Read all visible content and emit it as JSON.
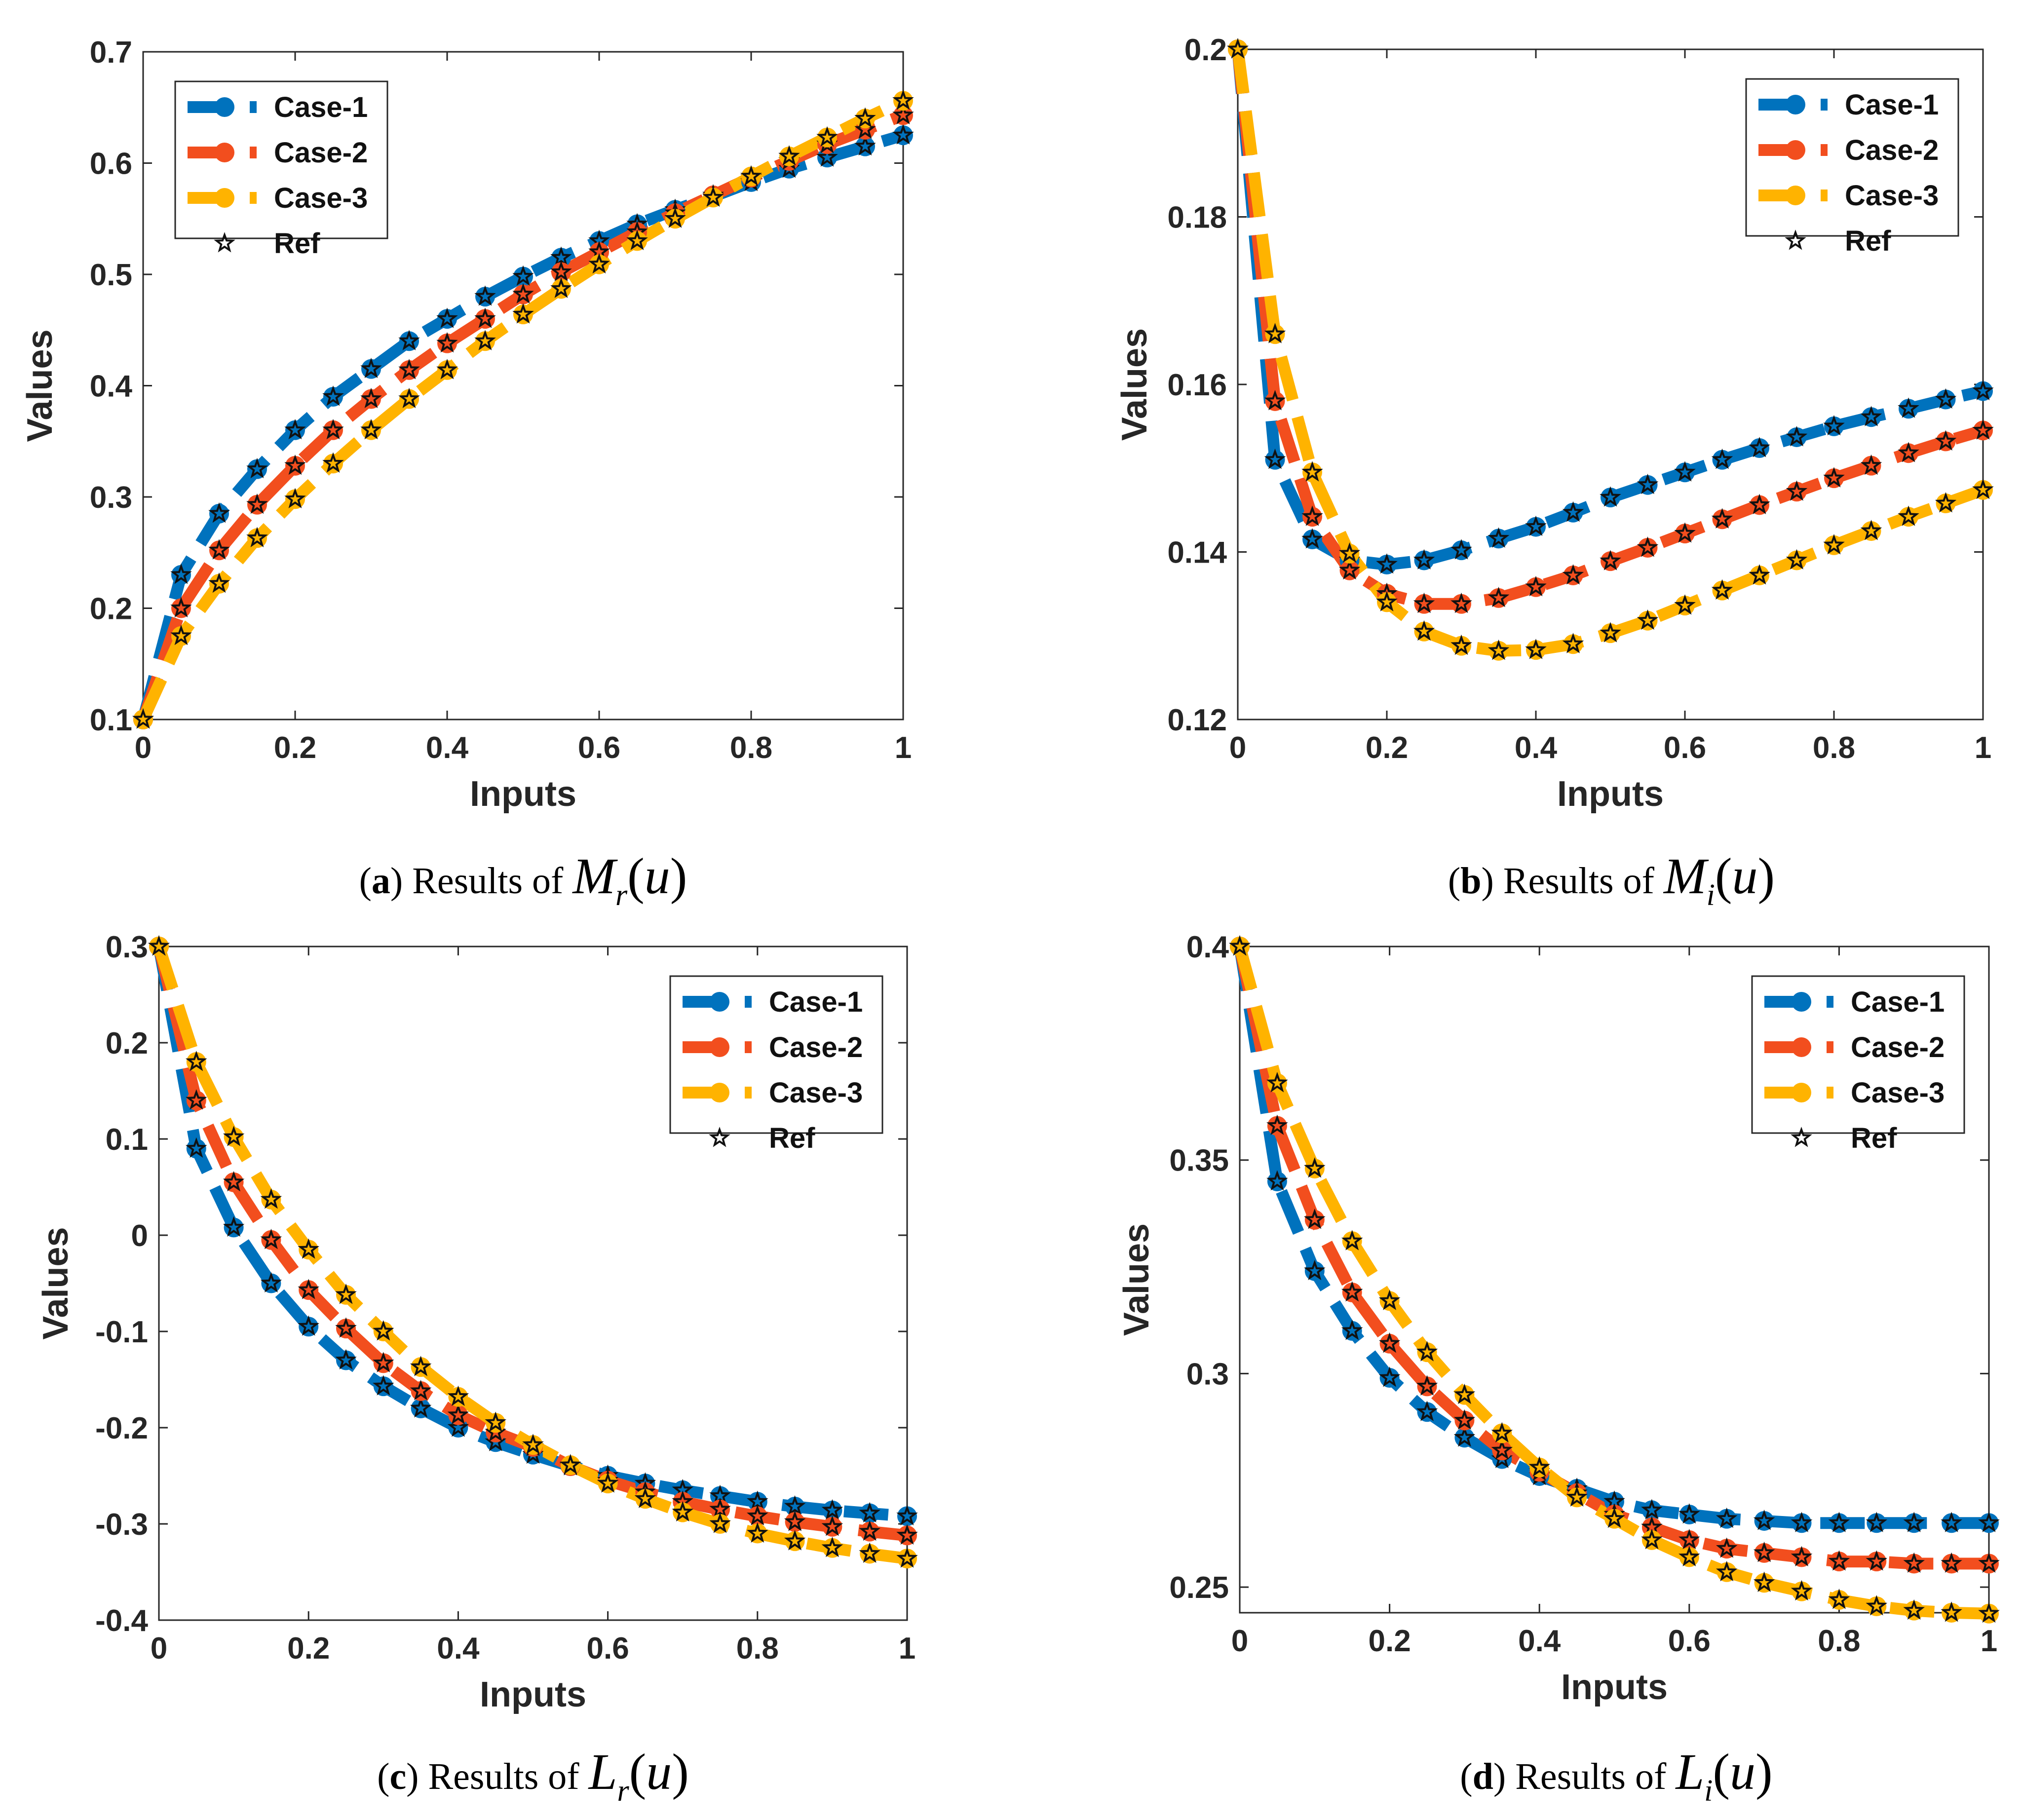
{
  "colors": {
    "case1": "#0072BD",
    "case2": "#F24E1E",
    "case3": "#FFB300",
    "ref": "#111111"
  },
  "chart_data": [
    {
      "id": "a",
      "type": "line",
      "title": "",
      "xlabel": "Inputs",
      "ylabel": "Values",
      "xlim": [
        0,
        1
      ],
      "ylim": [
        0.1,
        0.7
      ],
      "xticks": [
        0,
        0.2,
        0.4,
        0.6,
        0.8,
        1
      ],
      "xtick_labels": [
        "0",
        "0.2",
        "0.4",
        "0.6",
        "0.8",
        "1"
      ],
      "yticks": [
        0.1,
        0.2,
        0.3,
        0.4,
        0.5,
        0.6,
        0.7
      ],
      "ytick_labels": [
        "0.1",
        "0.2",
        "0.3",
        "0.4",
        "0.5",
        "0.6",
        "0.7"
      ],
      "legend": {
        "position": "top-left",
        "entries": [
          "Case-1",
          "Case-2",
          "Case-3",
          "Ref"
        ]
      },
      "caption": {
        "letter": "a",
        "text": "Results of",
        "symbol": "M",
        "sub": "r",
        "arg": "u"
      },
      "x": [
        0,
        0.05,
        0.1,
        0.15,
        0.2,
        0.25,
        0.3,
        0.35,
        0.4,
        0.45,
        0.5,
        0.55,
        0.6,
        0.65,
        0.7,
        0.75,
        0.8,
        0.85,
        0.9,
        0.95,
        1
      ],
      "series": [
        {
          "name": "Case-1",
          "values": [
            0.1,
            0.23,
            0.285,
            0.325,
            0.36,
            0.39,
            0.415,
            0.44,
            0.46,
            0.48,
            0.498,
            0.515,
            0.53,
            0.545,
            0.558,
            0.57,
            0.583,
            0.595,
            0.605,
            0.615,
            0.625
          ]
        },
        {
          "name": "Case-2",
          "values": [
            0.1,
            0.2,
            0.252,
            0.293,
            0.328,
            0.36,
            0.388,
            0.414,
            0.438,
            0.46,
            0.482,
            0.502,
            0.52,
            0.538,
            0.555,
            0.571,
            0.587,
            0.602,
            0.617,
            0.63,
            0.643
          ]
        },
        {
          "name": "Case-3",
          "values": [
            0.1,
            0.175,
            0.222,
            0.263,
            0.298,
            0.33,
            0.36,
            0.388,
            0.414,
            0.44,
            0.464,
            0.487,
            0.509,
            0.53,
            0.55,
            0.569,
            0.588,
            0.606,
            0.623,
            0.64,
            0.656
          ]
        }
      ]
    },
    {
      "id": "b",
      "type": "line",
      "title": "",
      "xlabel": "Inputs",
      "ylabel": "Values",
      "xlim": [
        0,
        1
      ],
      "ylim": [
        0.12,
        0.2
      ],
      "xticks": [
        0,
        0.2,
        0.4,
        0.6,
        0.8,
        1
      ],
      "xtick_labels": [
        "0",
        "0.2",
        "0.4",
        "0.6",
        "0.8",
        "1"
      ],
      "yticks": [
        0.12,
        0.14,
        0.16,
        0.18,
        0.2
      ],
      "ytick_labels": [
        "0.12",
        "0.14",
        "0.16",
        "0.18",
        "0.2"
      ],
      "legend": {
        "position": "top-right",
        "entries": [
          "Case-1",
          "Case-2",
          "Case-3",
          "Ref"
        ]
      },
      "caption": {
        "letter": "b",
        "text": "Results of",
        "symbol": "M",
        "sub": "i",
        "arg": "u"
      },
      "x": [
        0,
        0.05,
        0.1,
        0.15,
        0.2,
        0.25,
        0.3,
        0.35,
        0.4,
        0.45,
        0.5,
        0.55,
        0.6,
        0.65,
        0.7,
        0.75,
        0.8,
        0.85,
        0.9,
        0.95,
        1
      ],
      "series": [
        {
          "name": "Case-1",
          "values": [
            0.2,
            0.151,
            0.1415,
            0.139,
            0.1385,
            0.139,
            0.1402,
            0.1416,
            0.143,
            0.1447,
            0.1465,
            0.148,
            0.1495,
            0.151,
            0.1524,
            0.1537,
            0.155,
            0.1561,
            0.1571,
            0.1582,
            0.1592
          ]
        },
        {
          "name": "Case-2",
          "values": [
            0.2,
            0.158,
            0.1442,
            0.1378,
            0.135,
            0.1338,
            0.1338,
            0.1345,
            0.1358,
            0.1372,
            0.1389,
            0.1405,
            0.1422,
            0.1439,
            0.1456,
            0.1472,
            0.1488,
            0.1503,
            0.1518,
            0.1532,
            0.1545
          ]
        },
        {
          "name": "Case-3",
          "values": [
            0.2,
            0.166,
            0.1495,
            0.1398,
            0.134,
            0.1305,
            0.1288,
            0.1282,
            0.1283,
            0.129,
            0.1303,
            0.1318,
            0.1336,
            0.1354,
            0.1372,
            0.139,
            0.1408,
            0.1425,
            0.1442,
            0.1458,
            0.1474
          ]
        }
      ]
    },
    {
      "id": "c",
      "type": "line",
      "title": "",
      "xlabel": "Inputs",
      "ylabel": "Values",
      "xlim": [
        0,
        1
      ],
      "ylim": [
        -0.4,
        0.3
      ],
      "xticks": [
        0,
        0.2,
        0.4,
        0.6,
        0.8,
        1
      ],
      "xtick_labels": [
        "0",
        "0.2",
        "0.4",
        "0.6",
        "0.8",
        "1"
      ],
      "yticks": [
        -0.4,
        -0.3,
        -0.2,
        -0.1,
        0,
        0.1,
        0.2,
        0.3
      ],
      "ytick_labels": [
        "-0.4",
        "-0.3",
        "-0.2",
        "-0.1",
        "0",
        "0.1",
        "0.2",
        "0.3"
      ],
      "legend": {
        "position": "top-right",
        "entries": [
          "Case-1",
          "Case-2",
          "Case-3",
          "Ref"
        ]
      },
      "caption": {
        "letter": "c",
        "text": "Results of",
        "symbol": "L",
        "sub": "r",
        "arg": "u"
      },
      "x": [
        0,
        0.05,
        0.1,
        0.15,
        0.2,
        0.25,
        0.3,
        0.35,
        0.4,
        0.45,
        0.5,
        0.55,
        0.6,
        0.65,
        0.7,
        0.75,
        0.8,
        0.85,
        0.9,
        0.95,
        1
      ],
      "series": [
        {
          "name": "Case-1",
          "values": [
            0.3,
            0.09,
            0.008,
            -0.05,
            -0.095,
            -0.13,
            -0.157,
            -0.18,
            -0.2,
            -0.215,
            -0.228,
            -0.24,
            -0.25,
            -0.258,
            -0.265,
            -0.271,
            -0.277,
            -0.282,
            -0.286,
            -0.289,
            -0.292
          ]
        },
        {
          "name": "Case-2",
          "values": [
            0.3,
            0.14,
            0.055,
            -0.005,
            -0.057,
            -0.097,
            -0.133,
            -0.162,
            -0.187,
            -0.205,
            -0.22,
            -0.24,
            -0.255,
            -0.267,
            -0.277,
            -0.285,
            -0.292,
            -0.298,
            -0.303,
            -0.308,
            -0.312
          ]
        },
        {
          "name": "Case-3",
          "values": [
            0.3,
            0.18,
            0.102,
            0.037,
            -0.015,
            -0.062,
            -0.1,
            -0.137,
            -0.168,
            -0.195,
            -0.218,
            -0.239,
            -0.258,
            -0.274,
            -0.288,
            -0.3,
            -0.31,
            -0.318,
            -0.325,
            -0.331,
            -0.336
          ]
        }
      ]
    },
    {
      "id": "d",
      "type": "line",
      "title": "",
      "xlabel": "Inputs",
      "ylabel": "Values",
      "xlim": [
        0,
        1
      ],
      "ylim": [
        0.244,
        0.4
      ],
      "xticks": [
        0,
        0.2,
        0.4,
        0.6,
        0.8,
        1
      ],
      "xtick_labels": [
        "0",
        "0.2",
        "0.4",
        "0.6",
        "0.8",
        "1"
      ],
      "yticks": [
        0.25,
        0.3,
        0.35,
        0.4
      ],
      "ytick_labels": [
        "0.25",
        "0.3",
        "0.35",
        "0.4"
      ],
      "legend": {
        "position": "top-right",
        "entries": [
          "Case-1",
          "Case-2",
          "Case-3",
          "Ref"
        ]
      },
      "caption": {
        "letter": "d",
        "text": "Results of",
        "symbol": "L",
        "sub": "i",
        "arg": "u"
      },
      "x": [
        0,
        0.05,
        0.1,
        0.15,
        0.2,
        0.25,
        0.3,
        0.35,
        0.4,
        0.45,
        0.5,
        0.55,
        0.6,
        0.65,
        0.7,
        0.75,
        0.8,
        0.85,
        0.9,
        0.95,
        1
      ],
      "series": [
        {
          "name": "Case-1",
          "values": [
            0.4,
            0.345,
            0.324,
            0.31,
            0.299,
            0.291,
            0.285,
            0.28,
            0.276,
            0.273,
            0.27,
            0.268,
            0.267,
            0.266,
            0.2655,
            0.265,
            0.265,
            0.265,
            0.265,
            0.265,
            0.265
          ]
        },
        {
          "name": "Case-2",
          "values": [
            0.4,
            0.358,
            0.336,
            0.319,
            0.307,
            0.297,
            0.289,
            0.282,
            0.277,
            0.272,
            0.267,
            0.264,
            0.261,
            0.259,
            0.258,
            0.257,
            0.256,
            0.256,
            0.2555,
            0.2555,
            0.2555
          ]
        },
        {
          "name": "Case-3",
          "values": [
            0.4,
            0.368,
            0.348,
            0.331,
            0.317,
            0.305,
            0.295,
            0.286,
            0.278,
            0.271,
            0.266,
            0.261,
            0.257,
            0.2535,
            0.251,
            0.249,
            0.247,
            0.2455,
            0.2445,
            0.244,
            0.2438
          ]
        }
      ]
    }
  ]
}
